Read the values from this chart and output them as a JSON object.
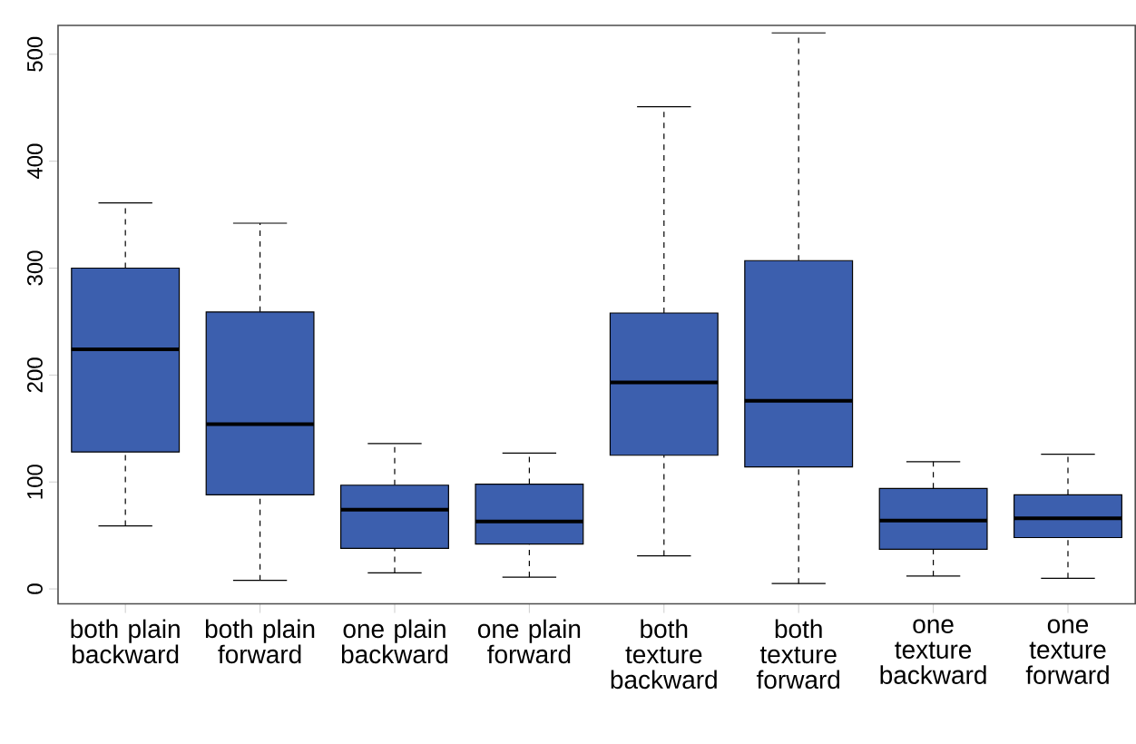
{
  "chart_data": {
    "type": "box",
    "categories": [
      "both plain backward",
      "both plain forward",
      "one plain backward",
      "one plain forward",
      "both texture backward",
      "both texture forward",
      "one texture backward",
      "one texture forward"
    ],
    "boxes": [
      {
        "low": 59,
        "q1": 128,
        "median": 224,
        "q3": 300,
        "high": 361
      },
      {
        "low": 8,
        "q1": 88,
        "median": 154,
        "q3": 259,
        "high": 342
      },
      {
        "low": 15,
        "q1": 38,
        "median": 74,
        "q3": 97,
        "high": 136
      },
      {
        "low": 11,
        "q1": 42,
        "median": 63,
        "q3": 98,
        "high": 127
      },
      {
        "low": 31,
        "q1": 125,
        "median": 193,
        "q3": 258,
        "high": 451
      },
      {
        "low": 5,
        "q1": 114,
        "median": 176,
        "q3": 307,
        "high": 520
      },
      {
        "low": 12,
        "q1": 37,
        "median": 64,
        "q3": 94,
        "high": 119
      },
      {
        "low": 10,
        "q1": 48,
        "median": 66,
        "q3": 88,
        "high": 126
      }
    ],
    "color": "#3c5fae",
    "ylim": [
      -14,
      527
    ],
    "yticks": [
      0,
      100,
      200,
      300,
      400,
      500
    ]
  }
}
